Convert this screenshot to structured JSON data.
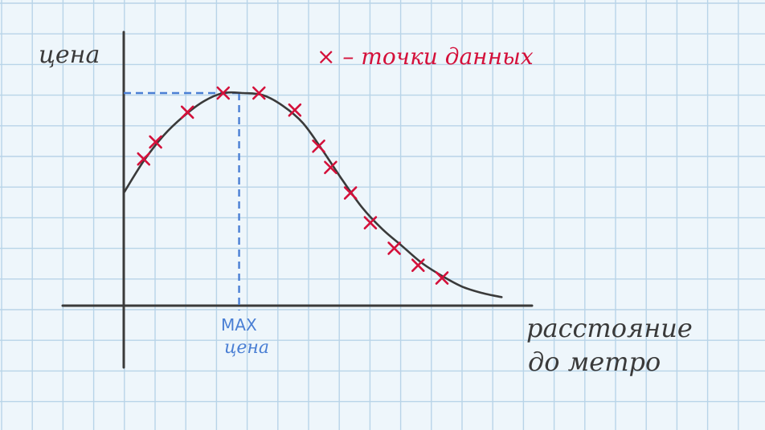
{
  "chart_data": {
    "type": "scatter",
    "title": "",
    "ylabel": "цена",
    "xlabel_lines": [
      "расстояние",
      "до метро"
    ],
    "legend_text": "× – точки данных",
    "annotation_lines": [
      "MAX",
      "цена"
    ],
    "x_axis_range": [
      0,
      10
    ],
    "y_axis_range": [
      0,
      10
    ],
    "peak": {
      "x": 2.9,
      "y": 10
    },
    "curve": {
      "x": [
        0,
        0.5,
        1,
        1.5,
        2,
        2.5,
        3,
        3.5,
        4,
        4.5,
        5,
        5.5,
        6,
        6.5,
        7,
        7.5,
        8,
        8.5,
        9,
        9.5
      ],
      "y": [
        5.3,
        6.8,
        8.0,
        8.9,
        9.6,
        10.0,
        10.0,
        9.9,
        9.4,
        8.6,
        7.3,
        5.9,
        4.6,
        3.6,
        2.8,
        2.0,
        1.4,
        0.9,
        0.6,
        0.4
      ]
    },
    "points": {
      "x": [
        0.5,
        0.8,
        1.6,
        2.5,
        3.4,
        4.3,
        4.9,
        5.2,
        5.7,
        6.2,
        6.8,
        7.4,
        8.0
      ],
      "y": [
        6.9,
        7.7,
        9.1,
        10.0,
        10.0,
        9.2,
        7.5,
        6.5,
        5.3,
        3.9,
        2.7,
        1.9,
        1.3
      ]
    },
    "grid": true,
    "colors": {
      "background": "#eef6fb",
      "grid": "#b8d4e8",
      "axis": "#3a3a3a",
      "curve": "#3a3a3a",
      "points": "#d4103a",
      "legend": "#d4103a",
      "guide": "#4a7fd4"
    }
  }
}
